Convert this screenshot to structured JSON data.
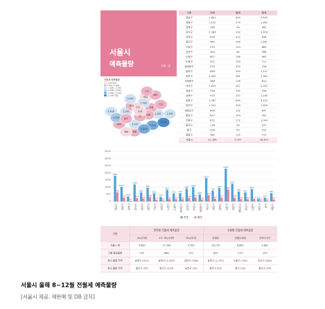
{
  "panel": {
    "title": "서울시",
    "subtitle": "예측물량",
    "unit": "단위 : 호"
  },
  "table": {
    "header": [
      "구분",
      "전세",
      "월세",
      "합계"
    ],
    "rows": [
      [
        "강남구",
        "1,801",
        "634",
        "2,435"
      ],
      [
        "강동구",
        "1,012",
        "270",
        "1,282"
      ],
      [
        "강북구",
        "338",
        "44",
        "382"
      ],
      [
        "강서구",
        "1,184",
        "232",
        "1,416"
      ],
      [
        "관악구",
        "626",
        "212",
        "838"
      ],
      [
        "광진구",
        "962",
        "299",
        "1,261"
      ],
      [
        "구로구",
        "570",
        "114",
        "684"
      ],
      [
        "금천구",
        "304",
        "64",
        "368"
      ],
      [
        "노원구",
        "807",
        "156",
        "963"
      ],
      [
        "도봉구",
        "552",
        "159",
        "711"
      ],
      [
        "동대문구",
        "576",
        "150",
        "726"
      ],
      [
        "동작구",
        "898",
        "249",
        "1,147"
      ],
      [
        "마포구",
        "1,002",
        "281",
        "1,283"
      ],
      [
        "서대문구",
        "486",
        "128",
        "614"
      ],
      [
        "서초구",
        "1,633",
        "437",
        "2,070"
      ],
      [
        "성동구",
        "746",
        "192",
        "938"
      ],
      [
        "성북구",
        "933",
        "257",
        "1,190"
      ],
      [
        "송파구",
        "2,287",
        "835",
        "3,122"
      ],
      [
        "양천구",
        "1,241",
        "259",
        "1,500"
      ],
      [
        "영등포구",
        "695",
        "152",
        "847"
      ],
      [
        "용산구",
        "627",
        "154",
        "781"
      ],
      [
        "은평구",
        "872",
        "172",
        "1,044"
      ],
      [
        "종로구",
        "178",
        "59",
        "237"
      ],
      [
        "중구",
        "256",
        "63",
        "319"
      ],
      [
        "중랑구",
        "580",
        "135",
        "715"
      ],
      [
        "서울시",
        "21,166",
        "5,707",
        "26,873"
      ]
    ]
  },
  "map": {
    "legend_title": "전월세 예측물량",
    "legend": [
      {
        "label": "500 미만",
        "color": "#f7d9e1"
      },
      {
        "label": "500~1,000",
        "color": "#eeb3c3"
      },
      {
        "label": "1,000~1,500",
        "color": "#cfe2f3"
      },
      {
        "label": "1,500~2,000",
        "color": "#a4c9ea"
      },
      {
        "label": "2,000~2,500",
        "color": "#74abdc"
      },
      {
        "label": "2,500 이상",
        "color": "#4a8cca"
      }
    ],
    "colors": [
      "#74abdc",
      "#cfe2f3",
      "#f7d9e1",
      "#cfe2f3",
      "#eeb3c3",
      "#cfe2f3",
      "#eeb3c3",
      "#f7d9e1",
      "#eeb3c3",
      "#eeb3c3",
      "#eeb3c3",
      "#cfe2f3",
      "#cfe2f3",
      "#eeb3c3",
      "#74abdc",
      "#eeb3c3",
      "#cfe2f3",
      "#4a8cca",
      "#a4c9ea",
      "#eeb3c3",
      "#eeb3c3",
      "#cfe2f3",
      "#f7d9e1",
      "#f7d9e1",
      "#eeb3c3"
    ]
  },
  "chart_data": {
    "type": "bar",
    "categories": [
      "강남구",
      "강동구",
      "강북구",
      "강서구",
      "관악구",
      "광진구",
      "구로구",
      "금천구",
      "노원구",
      "도봉구",
      "동대문구",
      "동작구",
      "마포구",
      "서대문구",
      "서초구",
      "성동구",
      "성북구",
      "송파구",
      "양천구",
      "영등포구",
      "용산구",
      "은평구",
      "종로구",
      "중구",
      "중랑구"
    ],
    "series": [
      {
        "name": "전세",
        "color": "#4fa3d9",
        "values": [
          1801,
          1012,
          338,
          1184,
          626,
          962,
          570,
          304,
          807,
          552,
          576,
          898,
          1002,
          486,
          1633,
          746,
          933,
          2287,
          1241,
          695,
          627,
          872,
          178,
          256,
          580
        ]
      },
      {
        "name": "월세",
        "color": "#e8839c",
        "values": [
          634,
          270,
          44,
          232,
          212,
          299,
          114,
          64,
          156,
          159,
          150,
          249,
          281,
          128,
          437,
          192,
          257,
          835,
          259,
          152,
          154,
          172,
          59,
          63,
          135
        ]
      }
    ],
    "ylim": [
      0,
      3500
    ],
    "yticks": [
      0,
      500,
      1000,
      1500,
      2000,
      2500,
      3000,
      3500
    ],
    "grid": true,
    "legend": "bottom"
  },
  "summary": {
    "corner": "구분",
    "groups": [
      "면적별 전월세 예측물량",
      "유형별 전월세 예측물량"
    ],
    "subheaders": [
      "40㎡이하",
      "40~85㎡이하",
      "85㎡초과",
      "아파트",
      "연립다세대",
      "단독다가구"
    ],
    "rows": [
      [
        "서울시 계",
        "5,880",
        "17,208",
        "3,785",
        "16,130",
        "6,862",
        "3,881"
      ],
      [
        "구별 평균물량",
        "235",
        "688",
        "151",
        "645",
        "274",
        "155"
      ],
      [
        "최다 물량 지역",
        "송파구 (412)",
        "송파구 (1,555)",
        "강남구 (418)",
        "송파구 (2,737)",
        "노원구 (730)",
        "강서구 (362)"
      ],
      [
        "최소 물량 지역",
        "종로구 (45)",
        "종로구 (124)",
        "금천구 (10)",
        "종로구 (52)",
        "중구 (39)",
        "용산구 (40)"
      ]
    ]
  },
  "caption": {
    "title": "서울시 올해 8~12월 전월세 예측물량",
    "source": "[서울시 제공. 재판매 및 DB 금지]"
  }
}
